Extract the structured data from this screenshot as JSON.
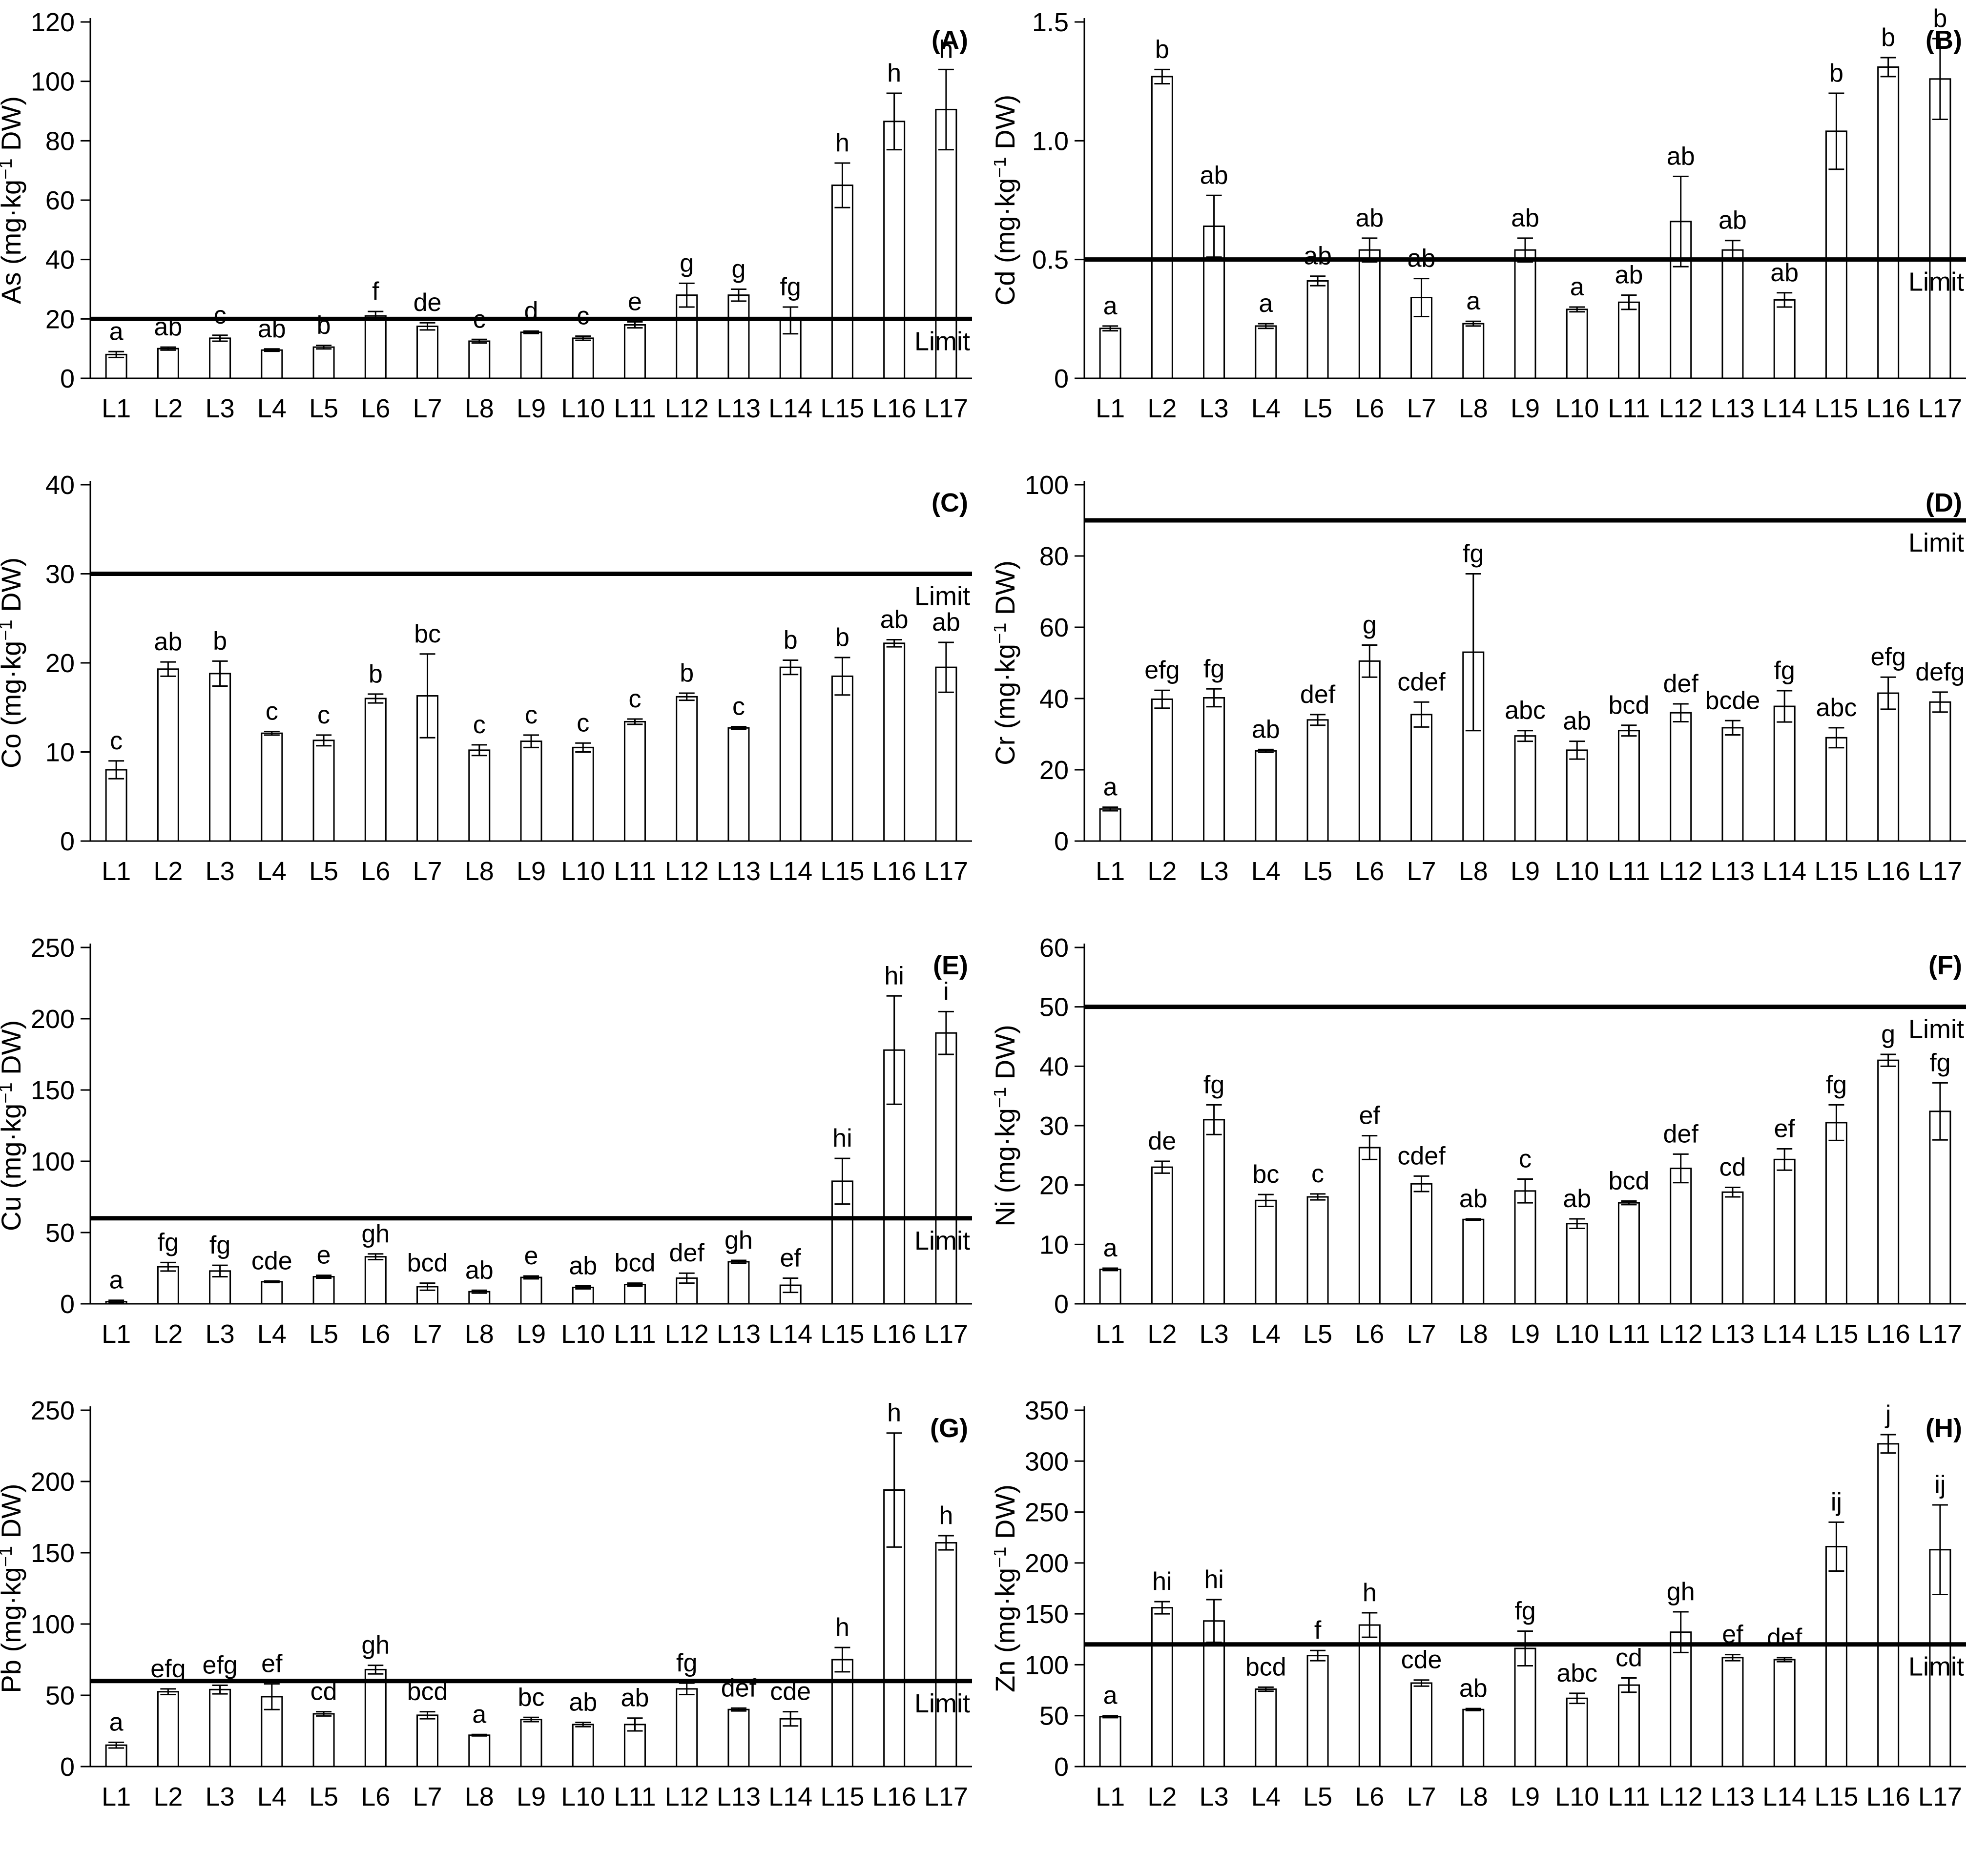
{
  "figure": {
    "background": "#ffffff",
    "stroke_color": "#000000",
    "bar_fill": "#ffffff",
    "limit_label": "Limit",
    "unit_prefix": " (mg·kg",
    "unit_sup": "−1",
    "unit_suffix": " DW)",
    "categories": [
      "L1",
      "L2",
      "L3",
      "L4",
      "L5",
      "L6",
      "L7",
      "L8",
      "L9",
      "L10",
      "L11",
      "L12",
      "L13",
      "L14",
      "L15",
      "L16",
      "L17"
    ]
  },
  "chart_data": [
    {
      "panel_id": "a",
      "panel_label": "(A)",
      "type": "bar",
      "element": "As",
      "ylabel": "As (mg·kg−1 DW)",
      "ylim": [
        0,
        120
      ],
      "yticks": [
        0,
        20,
        40,
        60,
        80,
        100,
        120
      ],
      "ytick_labels": [
        "0",
        "20",
        "40",
        "60",
        "80",
        "100",
        "120"
      ],
      "limit": 20,
      "legend_position": "none",
      "grid": false,
      "values": [
        8,
        10,
        13.5,
        9.5,
        10.5,
        21,
        17.5,
        12.5,
        15.5,
        13.5,
        18,
        28,
        28,
        19.5,
        65,
        86.5,
        90.5
      ],
      "errors": [
        1,
        0.5,
        1,
        0.4,
        0.6,
        1.5,
        1.2,
        0.6,
        0.4,
        0.7,
        1,
        4,
        2,
        4.5,
        7.5,
        9.5,
        13.5
      ],
      "letters": [
        "a",
        "ab",
        "c",
        "ab",
        "b",
        "f",
        "de",
        "c",
        "d",
        "c",
        "e",
        "g",
        "g",
        "fg",
        "h",
        "h",
        "h"
      ]
    },
    {
      "panel_id": "b",
      "panel_label": "(B)",
      "type": "bar",
      "element": "Cd",
      "ylabel": "Cd (mg·kg−1 DW)",
      "ylim": [
        0,
        1.5
      ],
      "yticks": [
        0,
        0.5,
        1.0,
        1.5
      ],
      "ytick_labels": [
        "0",
        "0.5",
        "1.0",
        "1.5"
      ],
      "limit": 0.5,
      "legend_position": "none",
      "grid": false,
      "values": [
        0.21,
        1.27,
        0.64,
        0.22,
        0.41,
        0.54,
        0.34,
        0.23,
        0.54,
        0.29,
        0.32,
        0.66,
        0.54,
        0.33,
        1.04,
        1.31,
        1.26
      ],
      "errors": [
        0.01,
        0.03,
        0.13,
        0.01,
        0.02,
        0.05,
        0.08,
        0.01,
        0.05,
        0.01,
        0.03,
        0.19,
        0.04,
        0.03,
        0.16,
        0.04,
        0.17
      ],
      "letters": [
        "a",
        "b",
        "ab",
        "a",
        "ab",
        "ab",
        "ab",
        "a",
        "ab",
        "a",
        "ab",
        "ab",
        "ab",
        "ab",
        "b",
        "b",
        "b"
      ]
    },
    {
      "panel_id": "c",
      "panel_label": "(C)",
      "type": "bar",
      "element": "Co",
      "ylabel": "Co (mg·kg−1 DW)",
      "ylim": [
        0,
        40
      ],
      "yticks": [
        0,
        10,
        20,
        30,
        40
      ],
      "ytick_labels": [
        "0",
        "10",
        "20",
        "30",
        "40"
      ],
      "limit": 30,
      "legend_position": "none",
      "grid": false,
      "values": [
        8,
        19.3,
        18.8,
        12.1,
        11.3,
        16,
        16.3,
        10.2,
        11.2,
        10.5,
        13.4,
        16.2,
        12.7,
        19.5,
        18.5,
        22.2,
        19.5
      ],
      "errors": [
        1,
        0.8,
        1.4,
        0.2,
        0.6,
        0.5,
        4.7,
        0.6,
        0.7,
        0.5,
        0.3,
        0.4,
        0.15,
        0.8,
        2.1,
        0.4,
        2.8
      ],
      "letters": [
        "c",
        "ab",
        "b",
        "c",
        "c",
        "b",
        "bc",
        "c",
        "c",
        "c",
        "c",
        "b",
        "c",
        "b",
        "b",
        "ab",
        "ab"
      ]
    },
    {
      "panel_id": "d",
      "panel_label": "(D)",
      "type": "bar",
      "element": "Cr",
      "ylabel": "Cr (mg·kg−1 DW)",
      "ylim": [
        0,
        100
      ],
      "yticks": [
        0,
        20,
        40,
        60,
        80,
        100
      ],
      "ytick_labels": [
        "0",
        "20",
        "40",
        "60",
        "80",
        "100"
      ],
      "limit": 90,
      "legend_position": "none",
      "grid": false,
      "values": [
        9,
        39.8,
        40.2,
        25.3,
        34,
        50.5,
        35.5,
        53,
        29.5,
        25.5,
        31,
        36,
        31.8,
        37.8,
        29,
        41.5,
        39
      ],
      "errors": [
        0.5,
        2.5,
        2.5,
        0.4,
        1.5,
        4.5,
        3.5,
        22,
        1.5,
        2.5,
        1.5,
        2.5,
        2,
        4.4,
        2.8,
        4.5,
        2.8
      ],
      "letters": [
        "a",
        "efg",
        "fg",
        "ab",
        "def",
        "g",
        "cdef",
        "fg",
        "abc",
        "ab",
        "bcd",
        "def",
        "bcde",
        "fg",
        "abc",
        "efg",
        "defg"
      ]
    },
    {
      "panel_id": "e",
      "panel_label": "(E)",
      "type": "bar",
      "element": "Cu",
      "ylabel": "Cu (mg·kg−1 DW)",
      "ylim": [
        0,
        250
      ],
      "yticks": [
        0,
        50,
        100,
        150,
        200,
        250
      ],
      "ytick_labels": [
        "0",
        "50",
        "100",
        "150",
        "200",
        "250"
      ],
      "limit": 60,
      "legend_position": "none",
      "grid": false,
      "values": [
        1.5,
        26,
        23,
        15.5,
        19,
        33,
        12,
        8.5,
        18.5,
        11.5,
        13.5,
        18,
        29.5,
        13,
        86,
        178,
        190
      ],
      "errors": [
        1,
        3,
        4,
        0.5,
        1,
        2,
        2.5,
        1,
        1,
        1,
        1,
        3.5,
        1,
        5,
        16,
        38,
        15
      ],
      "letters": [
        "a",
        "fg",
        "fg",
        "cde",
        "e",
        "gh",
        "bcd",
        "ab",
        "e",
        "ab",
        "bcd",
        "def",
        "gh",
        "ef",
        "hi",
        "hi",
        "i"
      ]
    },
    {
      "panel_id": "f",
      "panel_label": "(F)",
      "type": "bar",
      "element": "Ni",
      "ylabel": "Ni (mg·kg−1 DW)",
      "ylim": [
        0,
        60
      ],
      "yticks": [
        0,
        10,
        20,
        30,
        40,
        50,
        60
      ],
      "ytick_labels": [
        "0",
        "10",
        "20",
        "30",
        "40",
        "50",
        "60"
      ],
      "limit": 50,
      "legend_position": "none",
      "grid": false,
      "values": [
        5.8,
        23,
        31,
        17.4,
        18,
        26.3,
        20.2,
        14.2,
        19,
        13.5,
        17,
        22.8,
        18.8,
        24.3,
        30.5,
        41,
        32.4
      ],
      "errors": [
        0.2,
        1,
        2.5,
        1,
        0.5,
        2,
        1.3,
        0.1,
        2,
        0.8,
        0.3,
        2.4,
        0.8,
        1.8,
        3,
        1,
        4.8
      ],
      "letters": [
        "a",
        "de",
        "fg",
        "bc",
        "c",
        "ef",
        "cdef",
        "ab",
        "c",
        "ab",
        "bcd",
        "def",
        "cd",
        "ef",
        "fg",
        "g",
        "fg"
      ]
    },
    {
      "panel_id": "g",
      "panel_label": "(G)",
      "type": "bar",
      "element": "Pb",
      "ylabel": "Pb (mg·kg−1 DW)",
      "ylim": [
        0,
        250
      ],
      "yticks": [
        0,
        50,
        100,
        150,
        200,
        250
      ],
      "ytick_labels": [
        "0",
        "50",
        "100",
        "150",
        "200",
        "250"
      ],
      "limit": 60,
      "legend_position": "none",
      "grid": false,
      "values": [
        15,
        52.5,
        54,
        49,
        37,
        68,
        36,
        22,
        33,
        29.5,
        29.5,
        54.5,
        40,
        33.5,
        75,
        194,
        157
      ],
      "errors": [
        2,
        2,
        3,
        9,
        1.5,
        3,
        2.5,
        0.5,
        1.5,
        1.5,
        4.5,
        4,
        1,
        5,
        8.5,
        40,
        5
      ],
      "letters": [
        "a",
        "efg",
        "efg",
        "ef",
        "cd",
        "gh",
        "bcd",
        "a",
        "bc",
        "ab",
        "ab",
        "fg",
        "def",
        "cde",
        "h",
        "h",
        "h"
      ]
    },
    {
      "panel_id": "h",
      "panel_label": "(H)",
      "type": "bar",
      "element": "Zn",
      "ylabel": "Zn (mg·kg−1 DW)",
      "ylim": [
        0,
        350
      ],
      "yticks": [
        0,
        50,
        100,
        150,
        200,
        250,
        300,
        350
      ],
      "ytick_labels": [
        "0",
        "50",
        "100",
        "150",
        "200",
        "250",
        "300",
        "350"
      ],
      "limit": 120,
      "legend_position": "none",
      "grid": false,
      "values": [
        49,
        156,
        143,
        76,
        109,
        139,
        82,
        56,
        116,
        67,
        80,
        132,
        107,
        105,
        216,
        317,
        213
      ],
      "errors": [
        1,
        6,
        21,
        2,
        5,
        12,
        3,
        1,
        17,
        5,
        7,
        20,
        3,
        2,
        24,
        9,
        44
      ],
      "letters": [
        "a",
        "hi",
        "hi",
        "bcd",
        "f",
        "h",
        "cde",
        "ab",
        "fg",
        "abc",
        "cd",
        "gh",
        "ef",
        "def",
        "ij",
        "j",
        "ij"
      ]
    }
  ]
}
